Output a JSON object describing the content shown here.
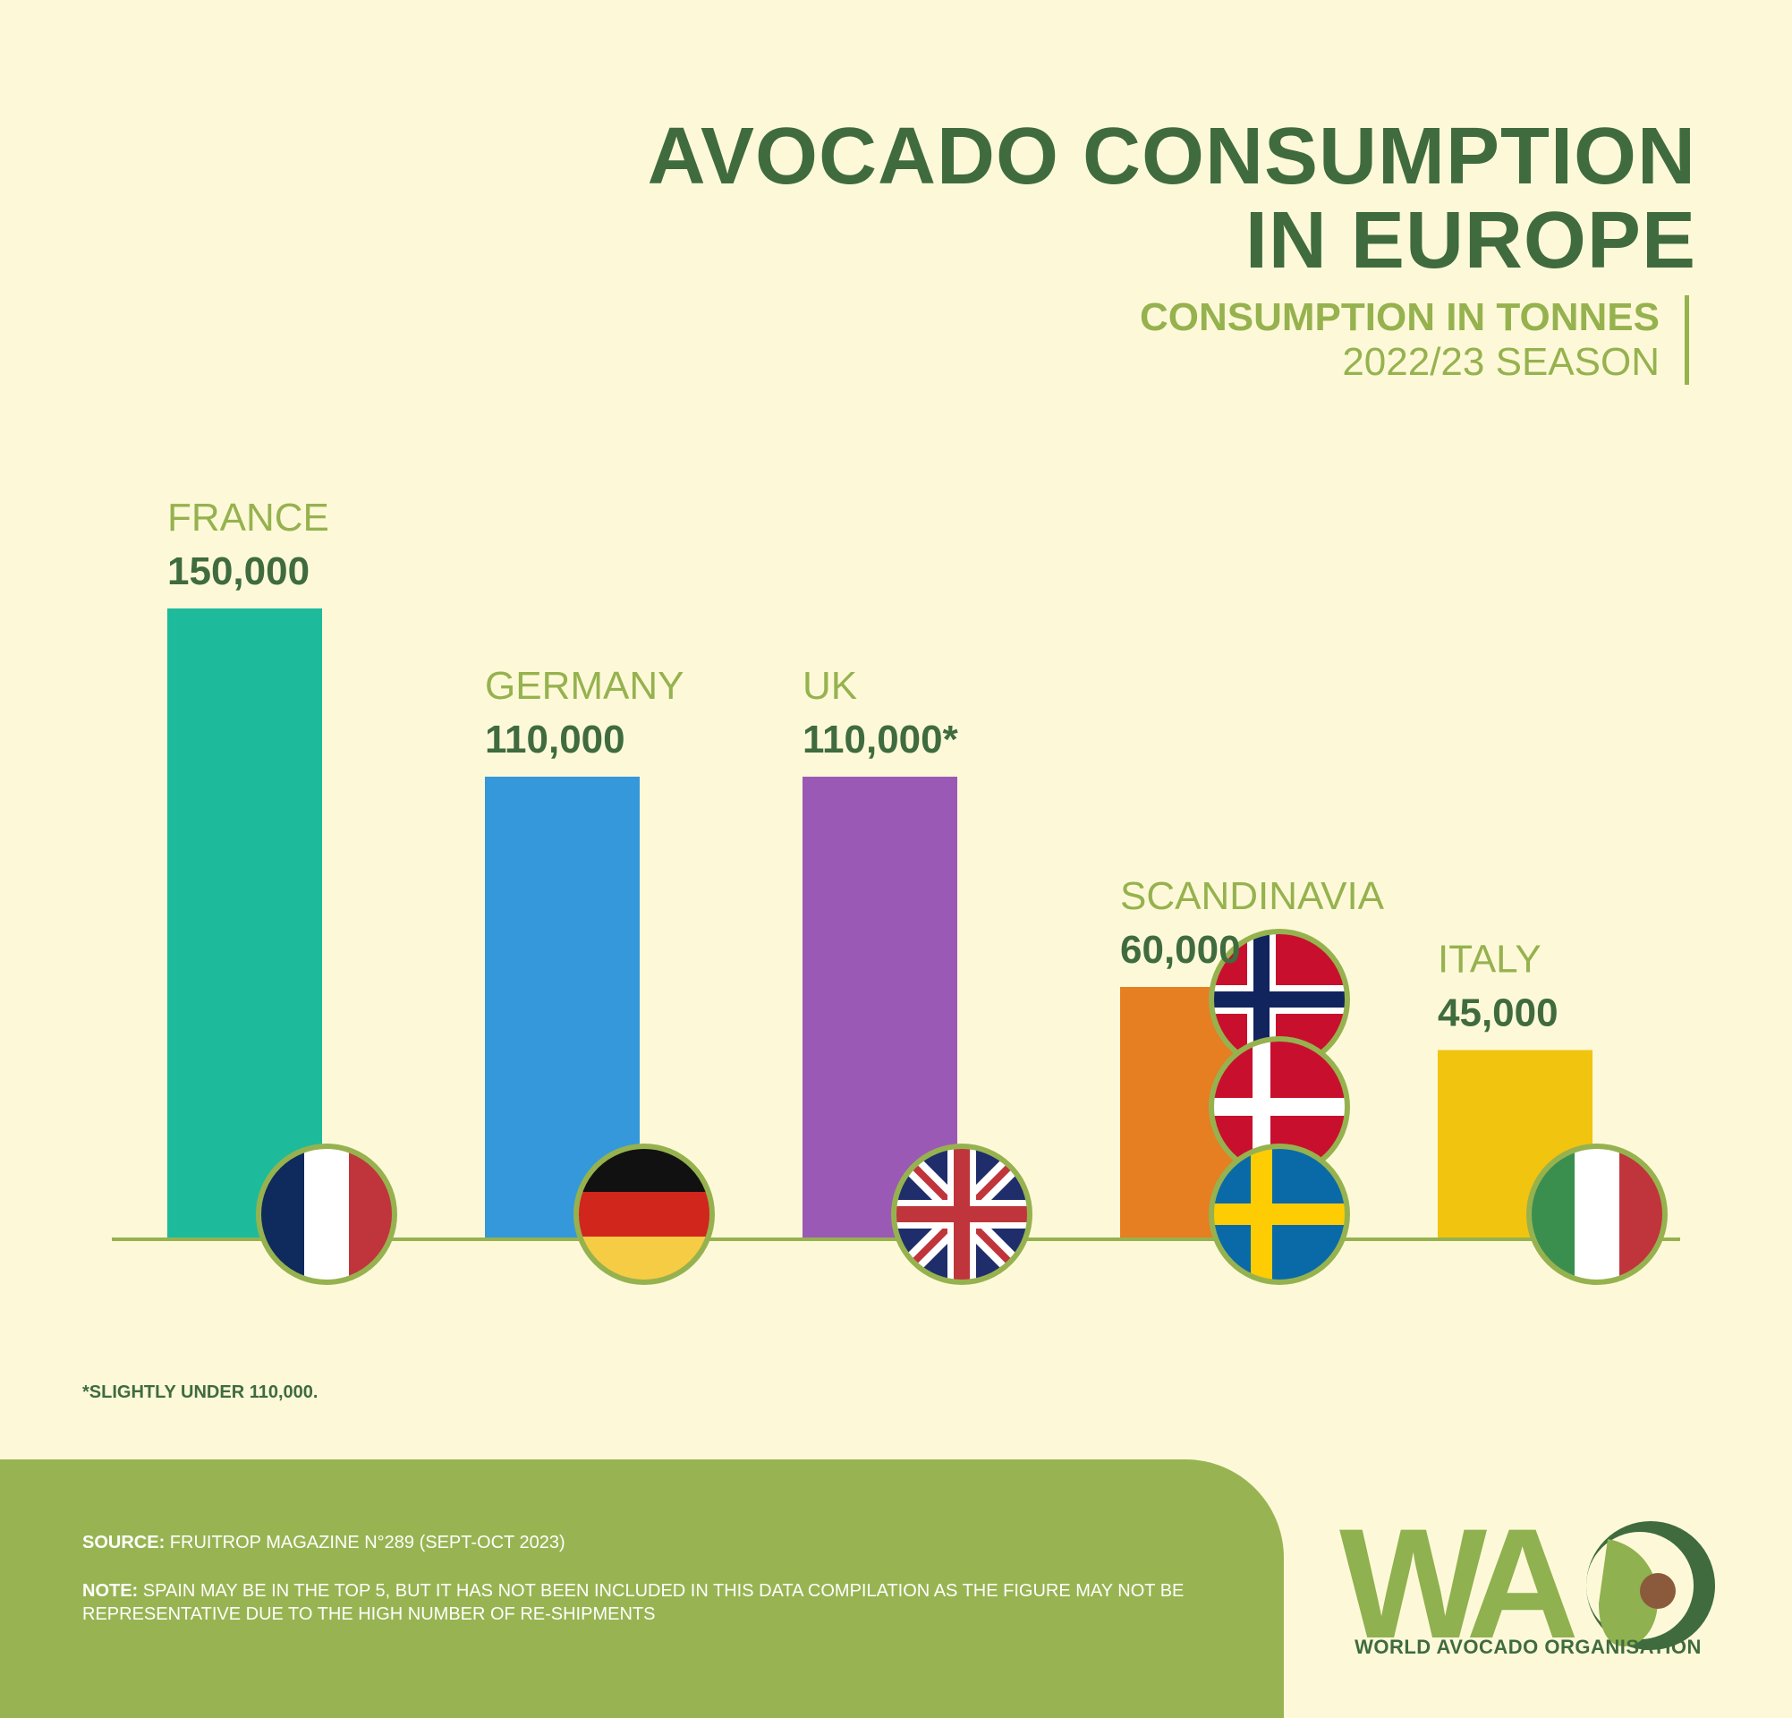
{
  "header": {
    "title_line1": "AVOCADO CONSUMPTION",
    "title_line2": "IN EUROPE",
    "subtitle": "CONSUMPTION IN TONNES",
    "season": "2022/23 SEASON"
  },
  "chart_data": {
    "type": "bar",
    "title": "AVOCADO CONSUMPTION IN EUROPE",
    "subtitle": "CONSUMPTION IN TONNES 2022/23 SEASON",
    "xlabel": "",
    "ylabel": "",
    "ylim": [
      0,
      150000
    ],
    "grid": false,
    "categories": [
      "FRANCE",
      "GERMANY",
      "UK",
      "SCANDINAVIA",
      "ITALY"
    ],
    "values": [
      150000,
      110000,
      110000,
      60000,
      45000
    ],
    "value_labels": [
      "150,000",
      "110,000",
      "110,000*",
      "60,000",
      "45,000"
    ],
    "colors": [
      "#1dbb9b",
      "#3498db",
      "#9b59b6",
      "#e67e22",
      "#f1c40f"
    ],
    "flag_icons": [
      [
        "france-flag-icon"
      ],
      [
        "germany-flag-icon"
      ],
      [
        "uk-flag-icon"
      ],
      [
        "norway-flag-icon",
        "denmark-flag-icon",
        "sweden-flag-icon"
      ],
      [
        "italy-flag-icon"
      ]
    ]
  },
  "footnote": "*SLIGHTLY UNDER 110,000.",
  "footer": {
    "source_label": "SOURCE:",
    "source_text": " FRUITROP MAGAZINE N°289 (SEPT-OCT 2023)",
    "note_label": "NOTE:",
    "note_text": " SPAIN MAY BE IN THE TOP 5, BUT IT HAS NOT BEEN INCLUDED IN THIS DATA COMPILATION AS THE FIGURE MAY NOT BE REPRESENTATIVE DUE TO THE HIGH NUMBER OF RE-SHIPMENTS"
  },
  "logo": {
    "wordmark": "WAO",
    "caption": "WORLD AVOCADO ORGANISATION"
  },
  "colors": {
    "background": "#fdf9d8",
    "title": "#3f6b3f",
    "accent": "#96b24f",
    "footer": "#98b452"
  }
}
